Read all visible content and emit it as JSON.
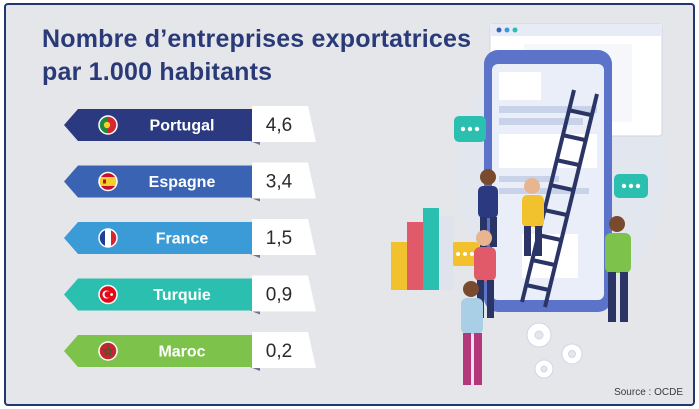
{
  "title_line1": "Nombre d’entreprises exportatrices",
  "title_line2": "par 1.000 habitants",
  "source": "Source : OCDE",
  "colors": {
    "title": "#2a3a78",
    "frame": "#24356f",
    "background": "#e5e6ea",
    "value_box": "#ffffff",
    "label_text": "#ffffff",
    "value_text": "#2b2b2b"
  },
  "chart_data": {
    "type": "bar",
    "title": "Nombre d’entreprises exportatrices par 1.000 habitants",
    "categories": [
      "Portugal",
      "Espagne",
      "France",
      "Turquie",
      "Maroc"
    ],
    "values": [
      4.6,
      3.4,
      1.5,
      0.9,
      0.2
    ],
    "value_labels": [
      "4,6",
      "3,4",
      "1,5",
      "0,9",
      "0,2"
    ],
    "row_colors": [
      "#2b3a80",
      "#3b63b3",
      "#3a9bd7",
      "#2abfae",
      "#7dc24b"
    ],
    "flag_icons": [
      "portugal-flag-icon",
      "spain-flag-icon",
      "france-flag-icon",
      "turkey-flag-icon",
      "morocco-flag-icon"
    ],
    "xlabel": "",
    "ylabel": ""
  }
}
